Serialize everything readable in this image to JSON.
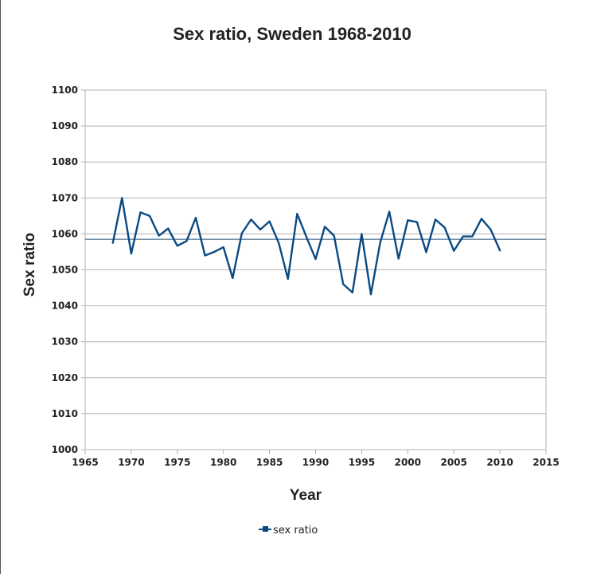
{
  "chart_data": {
    "type": "line",
    "title": "Sex ratio, Sweden 1968-2010",
    "xlabel": "Year",
    "ylabel": "Sex ratio",
    "xlim": [
      1965,
      2015
    ],
    "ylim": [
      1000,
      1100
    ],
    "x_ticks": [
      "1965",
      "1970",
      "1975",
      "1980",
      "1985",
      "1990",
      "1995",
      "2000",
      "2005",
      "2010",
      "2015"
    ],
    "y_ticks": [
      "1000",
      "1010",
      "1020",
      "1030",
      "1040",
      "1050",
      "1060",
      "1070",
      "1080",
      "1090",
      "1100"
    ],
    "grid": "horizontal",
    "legend_position": "bottom",
    "reference_line": 1058.5,
    "series": [
      {
        "name": "sex ratio",
        "color": "#0a4a82",
        "x": [
          1968,
          1969,
          1970,
          1971,
          1972,
          1973,
          1974,
          1975,
          1976,
          1977,
          1978,
          1979,
          1980,
          1981,
          1982,
          1983,
          1984,
          1985,
          1986,
          1987,
          1988,
          1989,
          1990,
          1991,
          1992,
          1993,
          1994,
          1995,
          1996,
          1997,
          1998,
          1999,
          2000,
          2001,
          2002,
          2003,
          2004,
          2005,
          2006,
          2007,
          2008,
          2009,
          2010
        ],
        "y": [
          1057.5,
          1070,
          1054.5,
          1066,
          1065,
          1059.5,
          1061.5,
          1056.7,
          1058,
          1064.5,
          1054,
          1055,
          1056.3,
          1047.7,
          1060.2,
          1064,
          1061.2,
          1063.5,
          1057.5,
          1047.5,
          1065.6,
          1059.2,
          1053,
          1062,
          1059.5,
          1046,
          1043.7,
          1060,
          1043.2,
          1057.5,
          1066.2,
          1053.1,
          1063.8,
          1063.3,
          1054.9,
          1064,
          1061.8,
          1055.3,
          1059.3,
          1059.3,
          1064.2,
          1061.2,
          1055.4
        ]
      }
    ]
  }
}
